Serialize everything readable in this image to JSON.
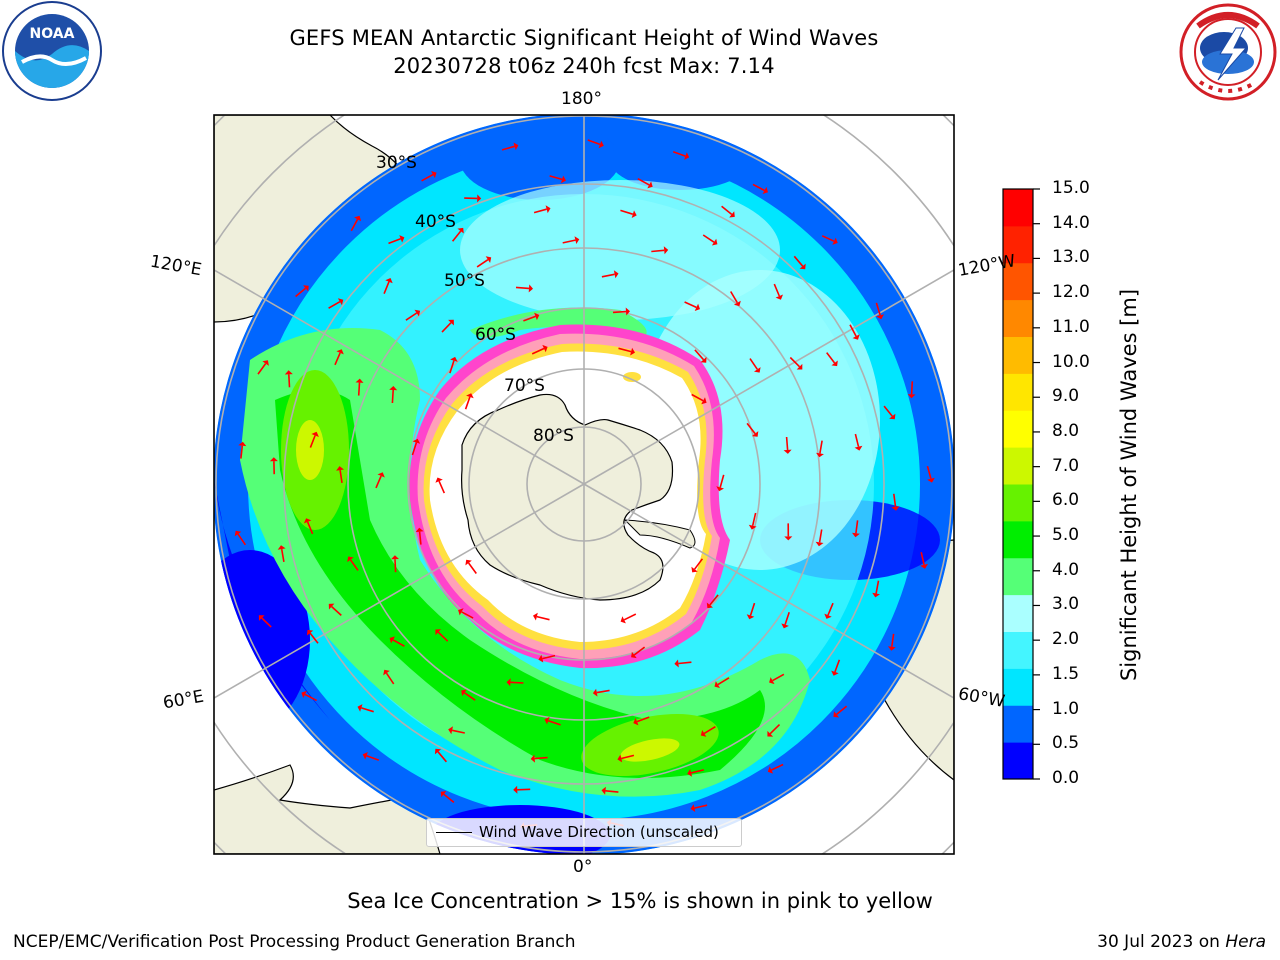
{
  "title_line1": "GEFS MEAN Antarctic Significant Height of Wind Waves",
  "title_line2": "20230728 t06z 240h fcst   Max: 7.14",
  "map": {
    "lon_labels": [
      "180°",
      "120°E",
      "120°W",
      "60°E",
      "60°W",
      "0°"
    ],
    "lat_labels": [
      "30°S",
      "40°S",
      "50°S",
      "60°S",
      "70°S",
      "80°S"
    ],
    "legend_label": "Wind Wave Direction (unscaled)",
    "arrow_color": "#ff0000",
    "land_color": "#efefdc",
    "ice_colors": [
      "#ff44cc",
      "#ffa0b8",
      "#ffe040"
    ]
  },
  "colorbar": {
    "label": "Significant Height of Wind Waves [m]",
    "ticks": [
      "15.0",
      "14.0",
      "13.0",
      "12.0",
      "11.0",
      "10.0",
      "9.0",
      "8.0",
      "7.0",
      "6.0",
      "5.0",
      "4.0",
      "3.0",
      "2.0",
      "1.5",
      "1.0",
      "0.5",
      "0.0"
    ],
    "colors": [
      "#0000ff",
      "#0066ff",
      "#00e6ff",
      "#44f5ff",
      "#aaffff",
      "#55ff77",
      "#00ee00",
      "#66f200",
      "#ccf800",
      "#ffff00",
      "#ffe600",
      "#ffbb00",
      "#ff8800",
      "#ff5500",
      "#ff2200",
      "#ff0000"
    ]
  },
  "ice_note": "Sea Ice Concentration > 15% is shown in pink to yellow",
  "credit": "NCEP/EMC/Verification Post Processing Product Generation Branch",
  "run_date": "30 Jul 2023 on",
  "run_host": "Hera",
  "logos": [
    "noaa-logo",
    "nws-logo"
  ]
}
